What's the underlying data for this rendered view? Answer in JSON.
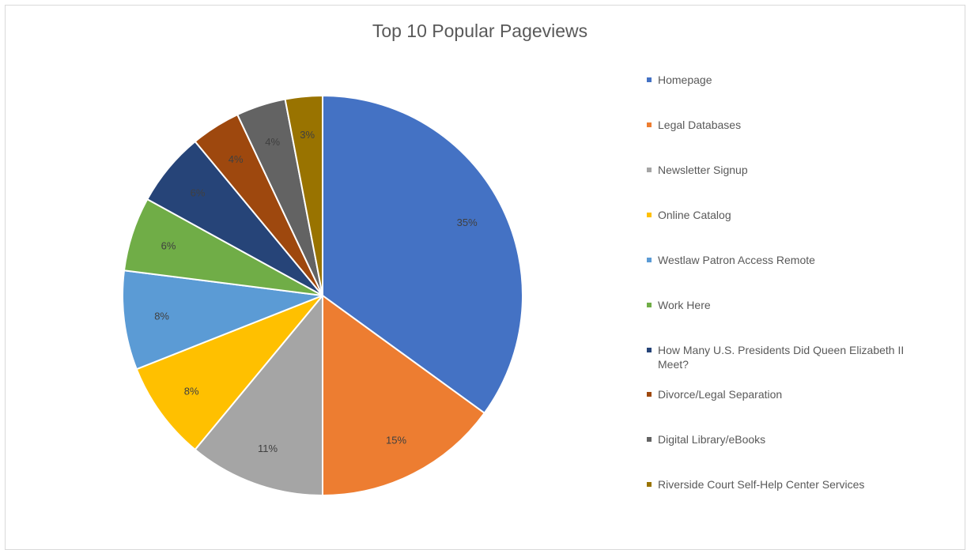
{
  "chart_data": {
    "type": "pie",
    "title": "Top 10 Popular Pageviews",
    "legend_position": "right",
    "slices": [
      {
        "name": "Homepage",
        "value": 35,
        "label": "35%",
        "color": "#4472c4"
      },
      {
        "name": "Legal Databases",
        "value": 15,
        "label": "15%",
        "color": "#ed7d31"
      },
      {
        "name": "Newsletter Signup",
        "value": 11,
        "label": "11%",
        "color": "#a5a5a5"
      },
      {
        "name": "Online Catalog",
        "value": 8,
        "label": "8%",
        "color": "#ffc000"
      },
      {
        "name": "Westlaw Patron Access Remote",
        "value": 8,
        "label": "8%",
        "color": "#5b9bd5"
      },
      {
        "name": "Work Here",
        "value": 6,
        "label": "6%",
        "color": "#70ad47"
      },
      {
        "name": "How Many U.S. Presidents Did Queen Elizabeth II Meet?",
        "value": 6,
        "label": "6%",
        "color": "#264478"
      },
      {
        "name": "Divorce/Legal Separation",
        "value": 4,
        "label": "4%",
        "color": "#9e480e"
      },
      {
        "name": "Digital Library/eBooks",
        "value": 4,
        "label": "4%",
        "color": "#636363"
      },
      {
        "name": "Riverside Court Self-Help Center Services",
        "value": 3,
        "label": "3%",
        "color": "#997300"
      }
    ]
  }
}
